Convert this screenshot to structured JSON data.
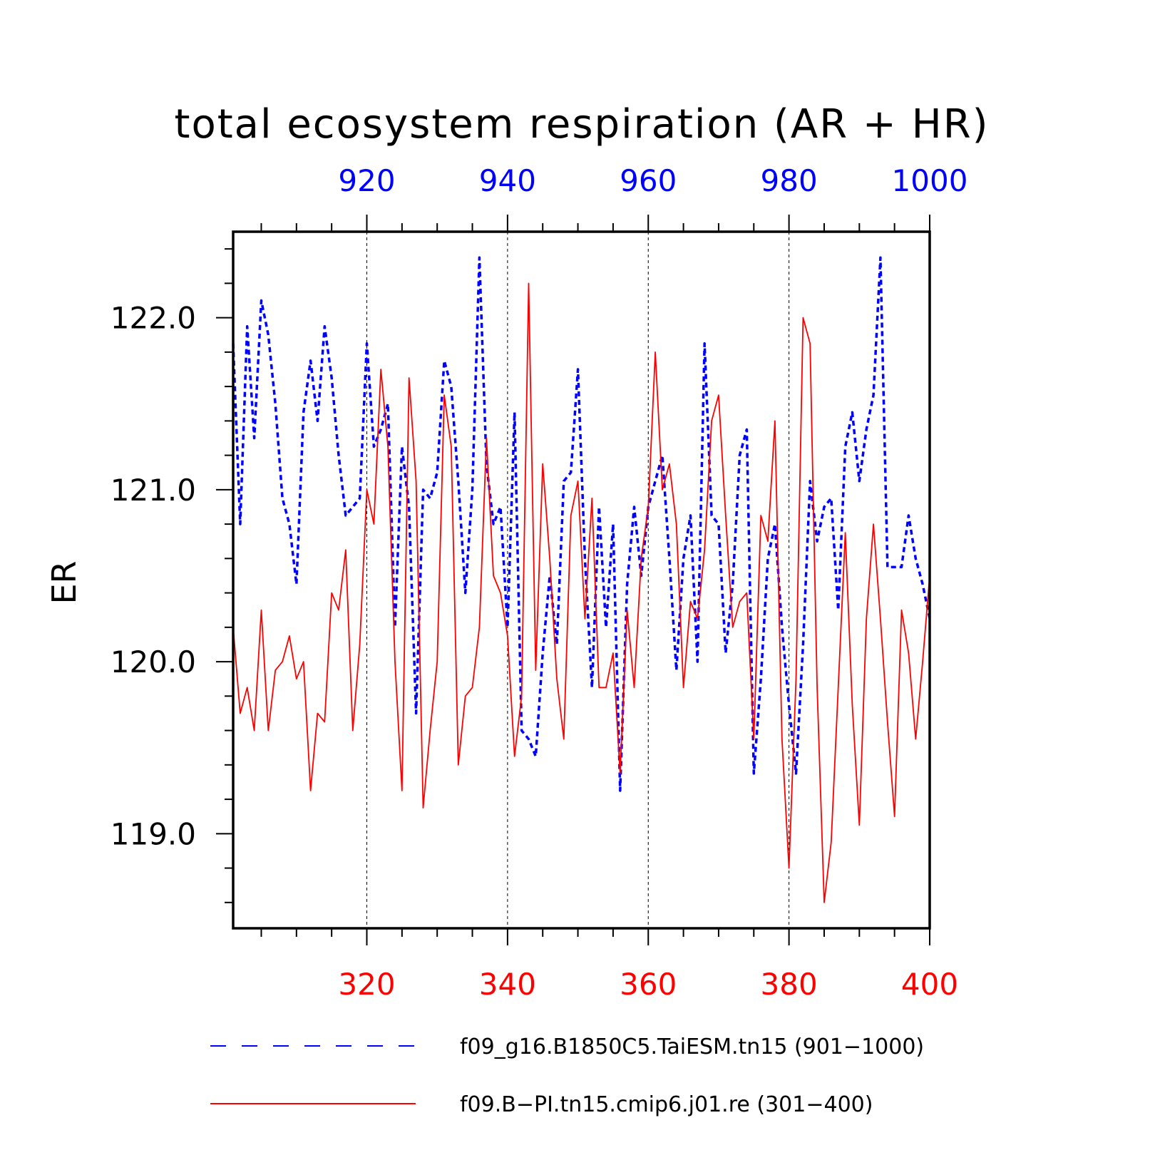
{
  "chart_data": {
    "type": "line",
    "title": "total ecosystem respiration (AR + HR)",
    "ylabel": "ER",
    "ylim": [
      118.45,
      122.5
    ],
    "yticks": [
      119.0,
      120.0,
      121.0,
      122.0
    ],
    "ytick_labels": [
      "119.0",
      "120.0",
      "121.0",
      "122.0"
    ],
    "grid": "vertical dashed lines at major top/bottom ticks",
    "legend_position": "bottom",
    "top_axis": {
      "color": "#0000ff",
      "range": [
        901,
        1000
      ],
      "ticks": [
        920,
        940,
        960,
        980,
        1000
      ],
      "tick_labels": [
        "920",
        "940",
        "960",
        "980",
        "1000"
      ]
    },
    "bottom_axis": {
      "color": "#ff0000",
      "range": [
        301,
        400
      ],
      "ticks": [
        320,
        340,
        360,
        380,
        400
      ],
      "tick_labels": [
        "320",
        "340",
        "360",
        "380",
        "400"
      ]
    },
    "series": [
      {
        "name": "f09_g16.B1850C5.TaiESM.tn15 (901−1000)",
        "color": "#0000ff",
        "style": "dashed",
        "axis": "top",
        "x_start": 901,
        "values": [
          121.85,
          120.8,
          121.95,
          121.3,
          122.1,
          121.9,
          121.5,
          120.95,
          120.8,
          120.45,
          121.45,
          121.75,
          121.4,
          121.95,
          121.65,
          121.2,
          120.85,
          120.9,
          120.95,
          121.85,
          121.25,
          121.35,
          121.5,
          120.2,
          121.25,
          120.9,
          119.7,
          121.0,
          120.95,
          121.1,
          121.75,
          121.6,
          121.05,
          120.4,
          121.0,
          122.35,
          121.15,
          120.8,
          120.9,
          120.2,
          121.45,
          119.6,
          119.55,
          119.45,
          120.05,
          120.5,
          120.1,
          121.05,
          121.1,
          121.7,
          120.6,
          119.85,
          120.9,
          120.2,
          120.8,
          119.25,
          120.45,
          120.9,
          120.5,
          120.9,
          121.05,
          121.2,
          120.6,
          119.95,
          120.6,
          120.85,
          120.0,
          121.85,
          120.85,
          120.8,
          120.05,
          120.45,
          121.2,
          121.35,
          119.35,
          119.9,
          120.6,
          120.8,
          120.2,
          119.75,
          119.35,
          120.1,
          121.05,
          120.7,
          120.9,
          120.95,
          120.3,
          121.25,
          121.45,
          121.05,
          121.35,
          121.55,
          122.35,
          120.55,
          120.55,
          120.55,
          120.85,
          120.6,
          120.45,
          120.25
        ]
      },
      {
        "name": "f09.B−PI.tn15.cmip6.j01.re (301−400)",
        "color": "#ff0000",
        "style": "solid",
        "axis": "bottom",
        "x_start": 301,
        "values": [
          120.2,
          119.7,
          119.85,
          119.6,
          120.3,
          119.6,
          119.95,
          120.0,
          120.15,
          119.9,
          120.0,
          119.25,
          119.7,
          119.65,
          120.4,
          120.3,
          120.65,
          119.6,
          120.1,
          121.0,
          120.8,
          121.7,
          121.25,
          120.0,
          119.25,
          121.65,
          121.05,
          119.15,
          119.6,
          120.0,
          121.55,
          121.25,
          119.4,
          119.8,
          119.85,
          120.2,
          121.3,
          120.5,
          120.4,
          120.15,
          119.45,
          119.8,
          122.2,
          119.95,
          121.15,
          120.6,
          119.9,
          119.55,
          120.85,
          121.05,
          120.25,
          120.95,
          119.85,
          119.85,
          120.05,
          119.35,
          120.3,
          119.85,
          120.6,
          120.9,
          121.8,
          121.0,
          121.15,
          120.8,
          119.85,
          120.35,
          120.25,
          120.65,
          121.4,
          121.55,
          120.85,
          120.2,
          120.35,
          120.4,
          119.55,
          120.85,
          120.7,
          121.4,
          119.55,
          118.8,
          119.9,
          122.0,
          121.85,
          119.85,
          118.6,
          118.95,
          119.85,
          120.75,
          119.75,
          119.05,
          120.25,
          120.8,
          120.25,
          119.65,
          119.1,
          120.3,
          120.05,
          119.55,
          120.0,
          120.5
        ]
      }
    ]
  }
}
